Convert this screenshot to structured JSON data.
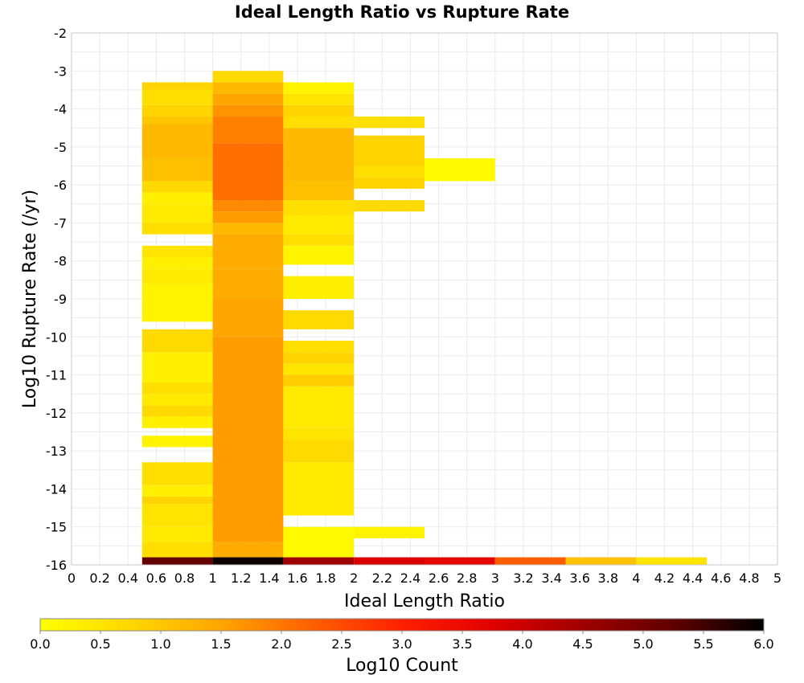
{
  "chart_data": {
    "type": "heatmap",
    "title": "Ideal Length Ratio vs Rupture Rate",
    "xlabel": "Ideal Length Ratio",
    "ylabel": "Log10 Rupture Rate (/yr)",
    "xlim": [
      0,
      5
    ],
    "ylim": [
      -16,
      -2
    ],
    "x_ticks": [
      "0",
      "0.2",
      "0.4",
      "0.6",
      "0.8",
      "1",
      "1.2",
      "1.4",
      "1.6",
      "1.8",
      "2",
      "2.2",
      "2.4",
      "2.6",
      "2.8",
      "3",
      "3.2",
      "3.4",
      "3.6",
      "3.8",
      "4",
      "4.2",
      "4.4",
      "4.6",
      "4.8",
      "5"
    ],
    "y_ticks": [
      "-2",
      "-3",
      "-4",
      "-5",
      "-6",
      "-7",
      "-8",
      "-9",
      "-10",
      "-11",
      "-12",
      "-13",
      "-14",
      "-15",
      "-16"
    ],
    "grid": true,
    "bin_width_x": 0.5,
    "bin_height_y": 0.2,
    "colorbar": {
      "label": "Log10 Count",
      "min": 0,
      "max": 6,
      "ticks": [
        "0.0",
        "0.5",
        "1.0",
        "1.5",
        "2.0",
        "2.5",
        "3.0",
        "3.5",
        "4.0",
        "4.5",
        "5.0",
        "5.5",
        "6.0"
      ],
      "colormap": [
        "#ffff00",
        "#ffd700",
        "#ffa500",
        "#ff6000",
        "#ff2000",
        "#e00000",
        "#a00000",
        "#600000",
        "#000000"
      ]
    },
    "columns": [
      {
        "x_start": 0.5,
        "cells": [
          {
            "y_start": -16.0,
            "y_end": -15.8,
            "value": 5.2
          },
          {
            "y_start": -15.8,
            "y_end": -15.4,
            "value": 0.6
          },
          {
            "y_start": -15.4,
            "y_end": -15.0,
            "value": 0.4
          },
          {
            "y_start": -15.0,
            "y_end": -14.4,
            "value": 0.5
          },
          {
            "y_start": -14.4,
            "y_end": -14.2,
            "value": 0.8
          },
          {
            "y_start": -14.2,
            "y_end": -13.9,
            "value": 0.3
          },
          {
            "y_start": -13.9,
            "y_end": -13.3,
            "value": 0.6
          },
          {
            "y_start": -12.9,
            "y_end": -12.6,
            "value": 0.2
          },
          {
            "y_start": -12.4,
            "y_end": -12.1,
            "value": 0.3
          },
          {
            "y_start": -12.1,
            "y_end": -11.8,
            "value": 0.7
          },
          {
            "y_start": -11.8,
            "y_end": -11.5,
            "value": 0.4
          },
          {
            "y_start": -11.5,
            "y_end": -11.2,
            "value": 0.6
          },
          {
            "y_start": -11.2,
            "y_end": -10.4,
            "value": 0.3
          },
          {
            "y_start": -10.4,
            "y_end": -9.8,
            "value": 0.7
          },
          {
            "y_start": -9.6,
            "y_end": -8.6,
            "value": 0.2
          },
          {
            "y_start": -8.6,
            "y_end": -8.2,
            "value": 0.4
          },
          {
            "y_start": -8.2,
            "y_end": -7.9,
            "value": 0.3
          },
          {
            "y_start": -7.9,
            "y_end": -7.6,
            "value": 0.5
          },
          {
            "y_start": -7.3,
            "y_end": -7.0,
            "value": 0.6
          },
          {
            "y_start": -7.0,
            "y_end": -6.5,
            "value": 0.4
          },
          {
            "y_start": -6.5,
            "y_end": -6.2,
            "value": 0.3
          },
          {
            "y_start": -6.2,
            "y_end": -5.9,
            "value": 0.7
          },
          {
            "y_start": -5.9,
            "y_end": -5.3,
            "value": 1.1
          },
          {
            "y_start": -5.3,
            "y_end": -4.4,
            "value": 1.2
          },
          {
            "y_start": -4.4,
            "y_end": -4.2,
            "value": 1.0
          },
          {
            "y_start": -4.2,
            "y_end": -3.9,
            "value": 0.8
          },
          {
            "y_start": -3.9,
            "y_end": -3.5,
            "value": 0.6
          },
          {
            "y_start": -3.5,
            "y_end": -3.3,
            "value": 0.8
          }
        ]
      },
      {
        "x_start": 1.0,
        "cells": [
          {
            "y_start": -16.0,
            "y_end": -15.8,
            "value": 5.9
          },
          {
            "y_start": -15.8,
            "y_end": -15.4,
            "value": 1.4
          },
          {
            "y_start": -15.4,
            "y_end": -10.0,
            "value": 1.6
          },
          {
            "y_start": -10.0,
            "y_end": -9.0,
            "value": 1.5
          },
          {
            "y_start": -9.0,
            "y_end": -8.2,
            "value": 1.4
          },
          {
            "y_start": -8.2,
            "y_end": -7.3,
            "value": 1.4
          },
          {
            "y_start": -7.3,
            "y_end": -7.0,
            "value": 1.2
          },
          {
            "y_start": -7.0,
            "y_end": -6.7,
            "value": 1.6
          },
          {
            "y_start": -6.7,
            "y_end": -6.4,
            "value": 1.8
          },
          {
            "y_start": -6.4,
            "y_end": -4.9,
            "value": 2.1
          },
          {
            "y_start": -4.9,
            "y_end": -4.2,
            "value": 1.9
          },
          {
            "y_start": -4.2,
            "y_end": -3.9,
            "value": 1.7
          },
          {
            "y_start": -3.9,
            "y_end": -3.6,
            "value": 1.5
          },
          {
            "y_start": -3.6,
            "y_end": -3.3,
            "value": 1.2
          },
          {
            "y_start": -3.3,
            "y_end": -3.0,
            "value": 0.7
          }
        ]
      },
      {
        "x_start": 1.5,
        "cells": [
          {
            "y_start": -16.0,
            "y_end": -15.8,
            "value": 4.5
          },
          {
            "y_start": -15.8,
            "y_end": -15.0,
            "value": 0.1
          },
          {
            "y_start": -14.7,
            "y_end": -13.3,
            "value": 0.4
          },
          {
            "y_start": -13.3,
            "y_end": -12.7,
            "value": 0.7
          },
          {
            "y_start": -12.7,
            "y_end": -12.4,
            "value": 0.5
          },
          {
            "y_start": -12.4,
            "y_end": -11.3,
            "value": 0.4
          },
          {
            "y_start": -11.3,
            "y_end": -11.0,
            "value": 0.9
          },
          {
            "y_start": -11.0,
            "y_end": -10.7,
            "value": 0.5
          },
          {
            "y_start": -10.7,
            "y_end": -10.4,
            "value": 0.8
          },
          {
            "y_start": -10.4,
            "y_end": -10.1,
            "value": 0.6
          },
          {
            "y_start": -9.8,
            "y_end": -9.3,
            "value": 0.7
          },
          {
            "y_start": -9.0,
            "y_end": -8.4,
            "value": 0.3
          },
          {
            "y_start": -8.1,
            "y_end": -7.6,
            "value": 0.2
          },
          {
            "y_start": -7.6,
            "y_end": -7.3,
            "value": 0.6
          },
          {
            "y_start": -7.3,
            "y_end": -6.8,
            "value": 0.4
          },
          {
            "y_start": -6.8,
            "y_end": -6.4,
            "value": 0.6
          },
          {
            "y_start": -6.4,
            "y_end": -5.9,
            "value": 1.1
          },
          {
            "y_start": -5.9,
            "y_end": -4.5,
            "value": 1.2
          },
          {
            "y_start": -4.5,
            "y_end": -4.2,
            "value": 0.6
          },
          {
            "y_start": -4.2,
            "y_end": -3.9,
            "value": 0.8
          },
          {
            "y_start": -3.9,
            "y_end": -3.6,
            "value": 0.5
          },
          {
            "y_start": -3.6,
            "y_end": -3.3,
            "value": 0.2
          }
        ]
      },
      {
        "x_start": 2.0,
        "cells": [
          {
            "y_start": -16.0,
            "y_end": -15.8,
            "value": 3.8
          },
          {
            "y_start": -15.3,
            "y_end": -15.0,
            "value": 0.2
          },
          {
            "y_start": -6.7,
            "y_end": -6.4,
            "value": 0.7
          },
          {
            "y_start": -6.1,
            "y_end": -5.8,
            "value": 0.8
          },
          {
            "y_start": -5.8,
            "y_end": -5.5,
            "value": 0.6
          },
          {
            "y_start": -5.5,
            "y_end": -4.7,
            "value": 0.8
          },
          {
            "y_start": -4.5,
            "y_end": -4.2,
            "value": 0.6
          }
        ]
      },
      {
        "x_start": 2.5,
        "cells": [
          {
            "y_start": -16.0,
            "y_end": -15.8,
            "value": 3.6
          },
          {
            "y_start": -5.9,
            "y_end": -5.3,
            "value": 0.1
          }
        ]
      },
      {
        "x_start": 3.0,
        "cells": [
          {
            "y_start": -16.0,
            "y_end": -15.8,
            "value": 2.3
          }
        ]
      },
      {
        "x_start": 3.5,
        "cells": [
          {
            "y_start": -16.0,
            "y_end": -15.8,
            "value": 1.1
          }
        ]
      },
      {
        "x_start": 4.0,
        "cells": [
          {
            "y_start": -16.0,
            "y_end": -15.8,
            "value": 0.5
          }
        ]
      }
    ]
  }
}
